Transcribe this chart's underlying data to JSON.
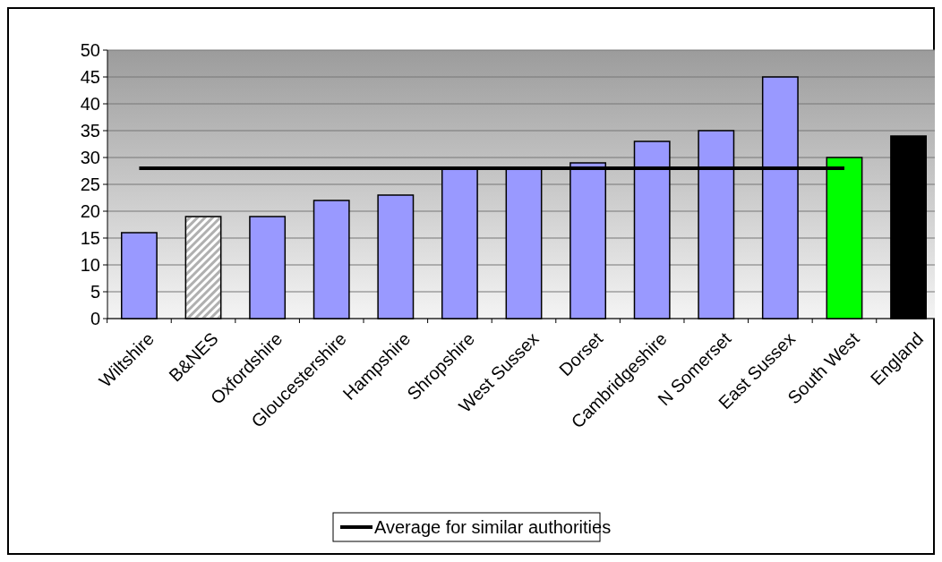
{
  "chart_data": {
    "type": "bar",
    "categories": [
      "Wiltshire",
      "B&NES",
      "Oxfordshire",
      "Gloucestershire",
      "Hampshire",
      "Shropshire",
      "West Sussex",
      "Dorset",
      "Cambridgeshire",
      "N Somerset",
      "East Sussex",
      "South West",
      "England"
    ],
    "series": [
      {
        "values": [
          16,
          19,
          19,
          22,
          23,
          28,
          28,
          29,
          33,
          35,
          45,
          30,
          34
        ],
        "colors": [
          "#9999ff",
          "#b0b0b0",
          "#9999ff",
          "#9999ff",
          "#9999ff",
          "#9999ff",
          "#9999ff",
          "#9999ff",
          "#9999ff",
          "#9999ff",
          "#9999ff",
          "#00ff00",
          "#000000"
        ]
      },
      {
        "type": "line",
        "name": "Average for similar authorities",
        "color": "#000000",
        "values": [
          28,
          28,
          28,
          28,
          28,
          28,
          28,
          28,
          28,
          28,
          28,
          28,
          null
        ]
      }
    ],
    "ylim": [
      0,
      50
    ],
    "yticks": [
      0,
      5,
      10,
      15,
      20,
      25,
      30,
      35,
      40,
      45,
      50
    ],
    "grid": "y",
    "legend": "bottom"
  }
}
